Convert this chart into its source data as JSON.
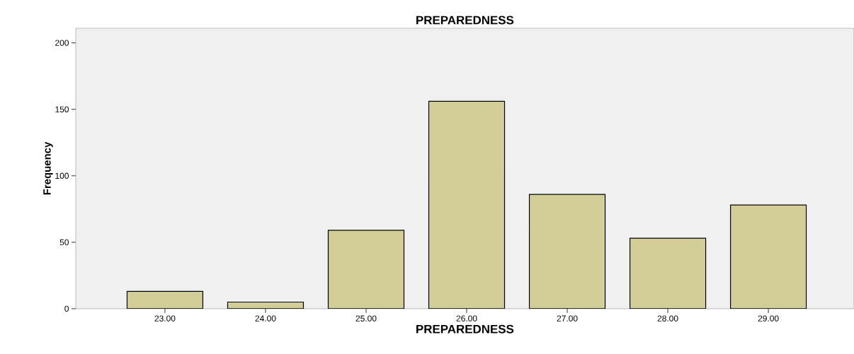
{
  "chart_data": {
    "type": "bar",
    "title": "PREPAREDNESS",
    "xlabel": "PREPAREDNESS",
    "ylabel": "Frequency",
    "categories": [
      "23.00",
      "24.00",
      "25.00",
      "26.00",
      "27.00",
      "28.00",
      "29.00"
    ],
    "values": [
      13,
      5,
      59,
      156,
      86,
      53,
      78
    ],
    "color": "#d3ce97",
    "ylim": [
      0,
      211
    ],
    "yticks": [
      0,
      50,
      100,
      150,
      200
    ],
    "grid": false
  }
}
